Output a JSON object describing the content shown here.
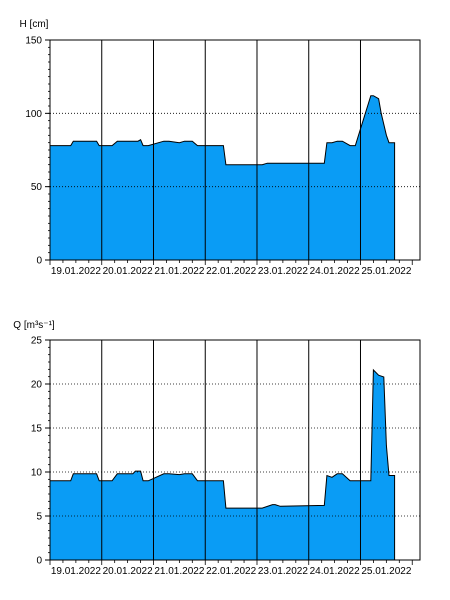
{
  "colors": {
    "fill": "#0a9cf5",
    "line": "#000000",
    "grid": "#000000",
    "background": "#ffffff"
  },
  "chart_data": [
    {
      "type": "area",
      "ylabel": "H [cm]",
      "ylim": [
        0,
        150
      ],
      "yticks": [
        0,
        50,
        100,
        150
      ],
      "xlim": [
        0,
        7.15
      ],
      "xticks": [
        {
          "x": 0.5,
          "label": "19.01.2022"
        },
        {
          "x": 1.5,
          "label": "20.01.2022"
        },
        {
          "x": 2.5,
          "label": "21.01.2022"
        },
        {
          "x": 3.5,
          "label": "22.01.2022"
        },
        {
          "x": 4.5,
          "label": "23.01.2022"
        },
        {
          "x": 5.5,
          "label": "24.01.2022"
        },
        {
          "x": 6.5,
          "label": "25.01.2022"
        }
      ],
      "day_lines": [
        1,
        2,
        3,
        4,
        5,
        6
      ],
      "grid_y": [
        50,
        100
      ],
      "grid": true,
      "x": [
        0,
        0.4,
        0.45,
        0.9,
        0.95,
        1.2,
        1.3,
        1.7,
        1.75,
        1.8,
        1.9,
        2.2,
        2.3,
        2.5,
        2.6,
        2.75,
        2.85,
        3.3,
        3.35,
        3.4,
        4.1,
        4.2,
        4.45,
        4.5,
        5.3,
        5.35,
        5.45,
        5.55,
        5.65,
        5.8,
        5.9,
        6.2,
        6.25,
        6.35,
        6.4,
        6.5,
        6.55,
        6.6,
        6.63,
        6.66
      ],
      "y": [
        78,
        78,
        81,
        81,
        78,
        78,
        81,
        81,
        82,
        78,
        78,
        81,
        81,
        80,
        81,
        81,
        78,
        78,
        78,
        65,
        65,
        66,
        66,
        66,
        66,
        80,
        80,
        81,
        81,
        78,
        78,
        112,
        112,
        110,
        100,
        85,
        80,
        80,
        80,
        80
      ]
    },
    {
      "type": "area",
      "ylabel": "Q [m³s⁻¹]",
      "ylim": [
        0,
        25
      ],
      "yticks": [
        0,
        5,
        10,
        15,
        20,
        25
      ],
      "xlim": [
        0,
        7.15
      ],
      "xticks": [
        {
          "x": 0.5,
          "label": "19.01.2022"
        },
        {
          "x": 1.5,
          "label": "20.01.2022"
        },
        {
          "x": 2.5,
          "label": "21.01.2022"
        },
        {
          "x": 3.5,
          "label": "22.01.2022"
        },
        {
          "x": 4.5,
          "label": "23.01.2022"
        },
        {
          "x": 5.5,
          "label": "24.01.2022"
        },
        {
          "x": 6.5,
          "label": "25.01.2022"
        }
      ],
      "day_lines": [
        1,
        2,
        3,
        4,
        5,
        6
      ],
      "grid_y": [
        5,
        10,
        15,
        20
      ],
      "grid": true,
      "x": [
        0,
        0.4,
        0.45,
        0.9,
        0.95,
        1.2,
        1.3,
        1.6,
        1.65,
        1.75,
        1.8,
        1.9,
        2.2,
        2.3,
        2.5,
        2.6,
        2.75,
        2.85,
        3.3,
        3.35,
        3.4,
        4.1,
        4.3,
        4.35,
        4.45,
        5.3,
        5.35,
        5.45,
        5.55,
        5.65,
        5.8,
        5.9,
        6.2,
        6.25,
        6.35,
        6.45,
        6.5,
        6.55,
        6.6,
        6.66
      ],
      "y": [
        9,
        9,
        9.8,
        9.8,
        9,
        9,
        9.8,
        9.8,
        10.1,
        10.1,
        9,
        9,
        9.8,
        9.8,
        9.7,
        9.8,
        9.8,
        9,
        9,
        9,
        5.9,
        5.9,
        6.3,
        6.3,
        6.1,
        6.2,
        9.6,
        9.4,
        9.8,
        9.8,
        9,
        9,
        9,
        21.6,
        21,
        20.8,
        13,
        9.6,
        9.6,
        9.6
      ]
    }
  ]
}
